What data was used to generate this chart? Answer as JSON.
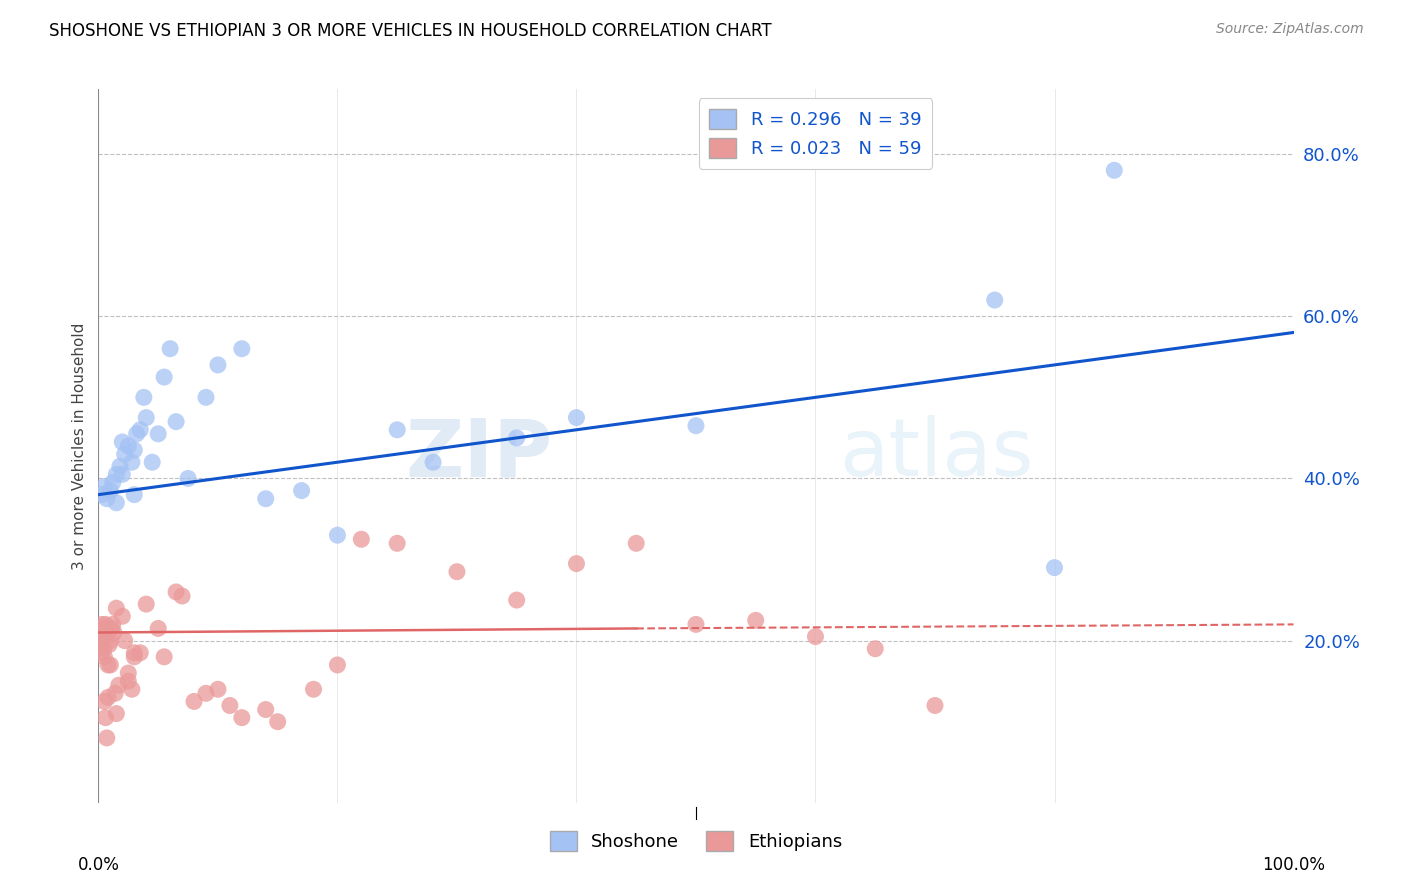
{
  "title": "SHOSHONE VS ETHIOPIAN 3 OR MORE VEHICLES IN HOUSEHOLD CORRELATION CHART",
  "source": "Source: ZipAtlas.com",
  "ylabel": "3 or more Vehicles in Household",
  "yticks": [
    20.0,
    40.0,
    60.0,
    80.0
  ],
  "ytick_labels": [
    "20.0%",
    "40.0%",
    "60.0%",
    "80.0%"
  ],
  "xmin": 0.0,
  "xmax": 100.0,
  "ymin": 0.0,
  "ymax": 88.0,
  "shoshone_color": "#a4c2f4",
  "ethiopian_color": "#ea9999",
  "shoshone_line_color": "#1155cc",
  "ethiopian_line_color": "#e06666",
  "legend_R_shoshone": "R = 0.296",
  "legend_N_shoshone": "N = 39",
  "legend_R_ethiopian": "R = 0.023",
  "legend_N_ethiopian": "N = 59",
  "watermark_zip": "ZIP",
  "watermark_atlas": "atlas",
  "shoshone_x": [
    0.3,
    0.5,
    0.7,
    1.0,
    1.2,
    1.5,
    1.8,
    2.0,
    2.2,
    2.5,
    2.8,
    3.0,
    3.2,
    3.5,
    3.8,
    4.0,
    4.5,
    5.0,
    5.5,
    6.0,
    6.5,
    7.5,
    9.0,
    10.0,
    12.0,
    14.0,
    17.0,
    20.0,
    25.0,
    28.0,
    35.0,
    40.0,
    50.0,
    75.0,
    80.0,
    85.0,
    3.0,
    1.5,
    2.0
  ],
  "shoshone_y": [
    38.0,
    39.0,
    37.5,
    38.5,
    39.5,
    40.5,
    41.5,
    40.5,
    43.0,
    44.0,
    42.0,
    43.5,
    45.5,
    46.0,
    50.0,
    47.5,
    42.0,
    45.5,
    52.5,
    56.0,
    47.0,
    40.0,
    50.0,
    54.0,
    56.0,
    37.5,
    38.5,
    33.0,
    46.0,
    42.0,
    45.0,
    47.5,
    46.5,
    62.0,
    29.0,
    78.0,
    38.0,
    37.0,
    44.5
  ],
  "ethiopian_x": [
    0.1,
    0.15,
    0.2,
    0.25,
    0.3,
    0.35,
    0.4,
    0.45,
    0.5,
    0.6,
    0.7,
    0.8,
    0.9,
    1.0,
    1.1,
    1.2,
    1.3,
    1.4,
    1.5,
    1.7,
    2.0,
    2.2,
    2.5,
    2.8,
    3.0,
    3.5,
    4.0,
    5.0,
    5.5,
    6.5,
    7.0,
    8.0,
    9.0,
    10.0,
    11.0,
    12.0,
    14.0,
    15.0,
    18.0,
    20.0,
    22.0,
    25.0,
    30.0,
    35.0,
    40.0,
    45.0,
    50.0,
    55.0,
    60.0,
    65.0,
    70.0,
    1.0,
    0.8,
    0.6,
    0.5,
    2.5,
    3.0,
    1.5,
    0.7
  ],
  "ethiopian_y": [
    21.0,
    20.0,
    19.5,
    18.5,
    22.0,
    21.5,
    20.5,
    19.0,
    18.0,
    22.0,
    21.0,
    17.0,
    19.5,
    20.0,
    21.5,
    22.0,
    21.0,
    13.5,
    24.0,
    14.5,
    23.0,
    20.0,
    15.0,
    14.0,
    18.0,
    18.5,
    24.5,
    21.5,
    18.0,
    26.0,
    25.5,
    12.5,
    13.5,
    14.0,
    12.0,
    10.5,
    11.5,
    10.0,
    14.0,
    17.0,
    32.5,
    32.0,
    28.5,
    25.0,
    29.5,
    32.0,
    22.0,
    22.5,
    20.5,
    19.0,
    12.0,
    17.0,
    13.0,
    10.5,
    12.5,
    16.0,
    18.5,
    11.0,
    8.0
  ]
}
